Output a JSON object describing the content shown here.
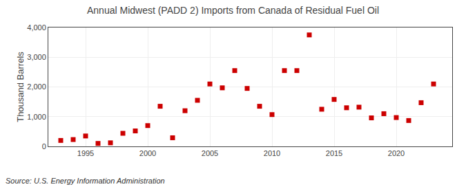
{
  "chart_data": {
    "type": "scatter",
    "title": "Annual Midwest (PADD 2) Imports from Canada of Residual Fuel Oil",
    "ylabel": "Thousand Barrels",
    "annotations": [
      "Source: U.S. Energy Information Administration"
    ],
    "x": [
      1993,
      1994,
      1995,
      1996,
      1997,
      1998,
      1999,
      2000,
      2001,
      2002,
      2003,
      2004,
      2005,
      2006,
      2007,
      2008,
      2009,
      2010,
      2011,
      2012,
      2013,
      2014,
      2015,
      2016,
      2017,
      2018,
      2019,
      2020,
      2021,
      2022,
      2023
    ],
    "values": [
      200,
      230,
      350,
      100,
      120,
      440,
      520,
      700,
      1350,
      290,
      1200,
      1550,
      2100,
      1970,
      2550,
      1950,
      1350,
      1070,
      2550,
      2550,
      3750,
      1250,
      1580,
      1300,
      1320,
      960,
      1100,
      970,
      870,
      1470,
      2100
    ],
    "color": "#cc0000",
    "marker": "square",
    "xlim": [
      1992,
      2024.5
    ],
    "xticks": [
      1995,
      2000,
      2005,
      2010,
      2015,
      2020
    ],
    "ylim": [
      0,
      4000
    ],
    "yticks": [
      0,
      {
        "value": 1000,
        "label": "1,000"
      },
      {
        "value": 2000,
        "label": "2,000"
      },
      {
        "value": 3000,
        "label": "3,000"
      },
      {
        "value": 4000,
        "label": "4,000"
      }
    ],
    "grid": true
  }
}
